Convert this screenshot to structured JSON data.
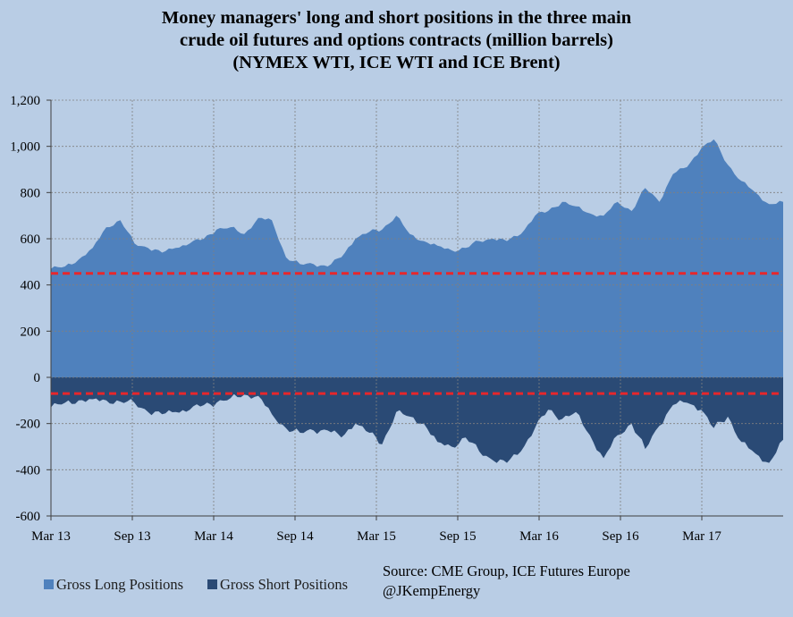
{
  "title_lines": [
    "Money managers' long and short positions in the three main",
    "crude oil futures and options contracts (million barrels)",
    "(NYMEX WTI, ICE WTI and ICE Brent)"
  ],
  "source": {
    "line1": "Source:  CME Group, ICE Futures Europe",
    "line2": "@JKempEnergy"
  },
  "colors": {
    "background": "#b9cde5",
    "long": "#4f81bd",
    "short": "#2a4a75",
    "reference_line": "#e8262b",
    "gridline": "#808080"
  },
  "chart_data": {
    "type": "area",
    "title": "Money managers' long and short positions in the three main crude oil futures and options contracts (million barrels) (NYMEX WTI, ICE WTI and ICE Brent)",
    "xlabel": "",
    "ylabel": "",
    "ylim": [
      -600,
      1200
    ],
    "yticks": [
      -600,
      -400,
      -200,
      0,
      200,
      400,
      600,
      800,
      1000,
      1200
    ],
    "ytick_labels": [
      "-600",
      "-400",
      "-200",
      "0",
      "200",
      "400",
      "600",
      "800",
      "1,000",
      "1,200"
    ],
    "xtick_labels": [
      "Mar 13",
      "Sep 13",
      "Mar 14",
      "Sep 14",
      "Mar 15",
      "Sep 15",
      "Mar 16",
      "Sep 16",
      "Mar 17"
    ],
    "x_range": [
      "2013-03",
      "2017-08"
    ],
    "grid": true,
    "legend_position": "bottom-left",
    "reference_lines": [
      {
        "y": 450,
        "style": "dashed",
        "color": "#e8262b"
      },
      {
        "y": -70,
        "style": "dashed",
        "color": "#e8262b"
      }
    ],
    "series": [
      {
        "name": "Gross Long Positions",
        "color": "#4f81bd",
        "x": [
          "2013-03",
          "2013-04",
          "2013-05",
          "2013-06",
          "2013-07",
          "2013-08",
          "2013-09",
          "2013-10",
          "2013-11",
          "2013-12",
          "2014-01",
          "2014-02",
          "2014-03",
          "2014-04",
          "2014-05",
          "2014-06",
          "2014-07",
          "2014-08",
          "2014-09",
          "2014-10",
          "2014-11",
          "2014-12",
          "2015-01",
          "2015-02",
          "2015-03",
          "2015-04",
          "2015-05",
          "2015-06",
          "2015-07",
          "2015-08",
          "2015-09",
          "2015-10",
          "2015-11",
          "2015-12",
          "2016-01",
          "2016-02",
          "2016-03",
          "2016-04",
          "2016-05",
          "2016-06",
          "2016-07",
          "2016-08",
          "2016-09",
          "2016-10",
          "2016-11",
          "2016-12",
          "2017-01",
          "2017-02",
          "2017-03",
          "2017-04",
          "2017-05",
          "2017-06",
          "2017-07",
          "2017-08"
        ],
        "values": [
          470,
          480,
          510,
          560,
          650,
          680,
          580,
          560,
          540,
          560,
          580,
          600,
          640,
          650,
          620,
          690,
          680,
          520,
          490,
          490,
          480,
          520,
          600,
          630,
          640,
          700,
          620,
          590,
          570,
          550,
          560,
          590,
          600,
          590,
          620,
          700,
          720,
          760,
          740,
          710,
          700,
          760,
          720,
          820,
          760,
          880,
          910,
          990,
          1030,
          920,
          850,
          800,
          750,
          760
        ]
      },
      {
        "name": "Gross Short Positions",
        "color": "#2a4a75",
        "x": [
          "2013-03",
          "2013-04",
          "2013-05",
          "2013-06",
          "2013-07",
          "2013-08",
          "2013-09",
          "2013-10",
          "2013-11",
          "2013-12",
          "2014-01",
          "2014-02",
          "2014-03",
          "2014-04",
          "2014-05",
          "2014-06",
          "2014-07",
          "2014-08",
          "2014-09",
          "2014-10",
          "2014-11",
          "2014-12",
          "2015-01",
          "2015-02",
          "2015-03",
          "2015-04",
          "2015-05",
          "2015-06",
          "2015-07",
          "2015-08",
          "2015-09",
          "2015-10",
          "2015-11",
          "2015-12",
          "2016-01",
          "2016-02",
          "2016-03",
          "2016-04",
          "2016-05",
          "2016-06",
          "2016-07",
          "2016-08",
          "2016-09",
          "2016-10",
          "2016-11",
          "2016-12",
          "2017-01",
          "2017-02",
          "2017-03",
          "2017-04",
          "2017-05",
          "2017-06",
          "2017-07",
          "2017-08"
        ],
        "values": [
          -130,
          -110,
          -100,
          -95,
          -100,
          -105,
          -110,
          -150,
          -160,
          -150,
          -140,
          -120,
          -110,
          -90,
          -75,
          -80,
          -160,
          -220,
          -240,
          -230,
          -230,
          -260,
          -200,
          -240,
          -290,
          -150,
          -170,
          -200,
          -280,
          -300,
          -260,
          -320,
          -360,
          -370,
          -320,
          -220,
          -140,
          -180,
          -150,
          -250,
          -350,
          -250,
          -200,
          -310,
          -210,
          -120,
          -110,
          -140,
          -220,
          -170,
          -280,
          -330,
          -370,
          -270
        ]
      }
    ]
  }
}
